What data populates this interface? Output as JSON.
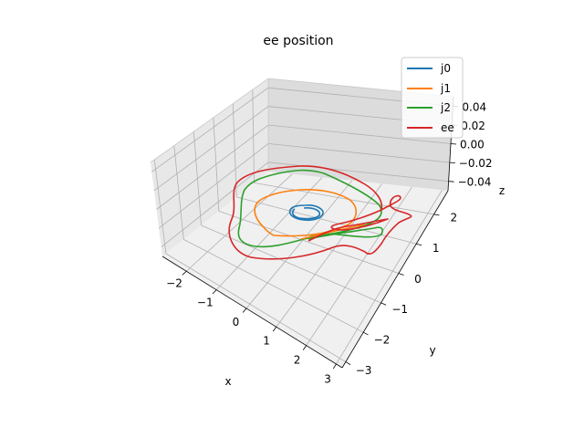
{
  "chart_data": {
    "type": "line3d",
    "title": "ee position",
    "xlabel": "x",
    "ylabel": "y",
    "zlabel": "z",
    "xlim": [
      -2.8,
      3.2
    ],
    "ylim": [
      -3.2,
      2.8
    ],
    "zlim": [
      -0.05,
      0.05
    ],
    "x_ticks": [
      "−2",
      "−1",
      "0",
      "1",
      "2",
      "3"
    ],
    "y_ticks": [
      "−3",
      "−2",
      "−1",
      "0",
      "1",
      "2"
    ],
    "z_ticks": [
      "0.04",
      "0.02",
      "0.00",
      "−0.02",
      "−0.04"
    ],
    "grid": true,
    "legend_position": "top-right",
    "series": [
      {
        "name": "j0",
        "color": "#1f77b4"
      },
      {
        "name": "j1",
        "color": "#ff7f0e"
      },
      {
        "name": "j2",
        "color": "#2ca02c"
      },
      {
        "name": "ee",
        "color": "#d62728"
      }
    ]
  }
}
